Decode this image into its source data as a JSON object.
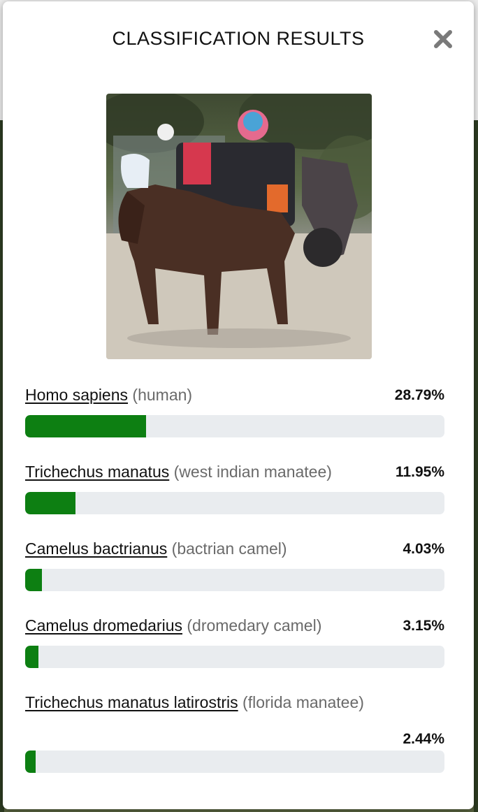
{
  "modal": {
    "title": "CLASSIFICATION RESULTS",
    "close_icon": "close-icon"
  },
  "photo": {
    "alt": "horse-drawn carriage photo"
  },
  "colors": {
    "bar_fill": "#0d7f12",
    "bar_track": "#e9ecef"
  },
  "results": [
    {
      "scientific": "Homo sapiens",
      "common": "(human)",
      "percent_label": "28.79%",
      "percent": 28.79
    },
    {
      "scientific": "Trichechus manatus",
      "common": "(west indian manatee)",
      "percent_label": "11.95%",
      "percent": 11.95
    },
    {
      "scientific": "Camelus bactrianus",
      "common": "(bactrian camel)",
      "percent_label": "4.03%",
      "percent": 4.03
    },
    {
      "scientific": "Camelus dromedarius",
      "common": "(dromedary camel)",
      "percent_label": "3.15%",
      "percent": 3.15
    },
    {
      "scientific": "Trichechus manatus latirostris",
      "common": "(florida manatee)",
      "percent_label": "2.44%",
      "percent": 2.44
    }
  ]
}
